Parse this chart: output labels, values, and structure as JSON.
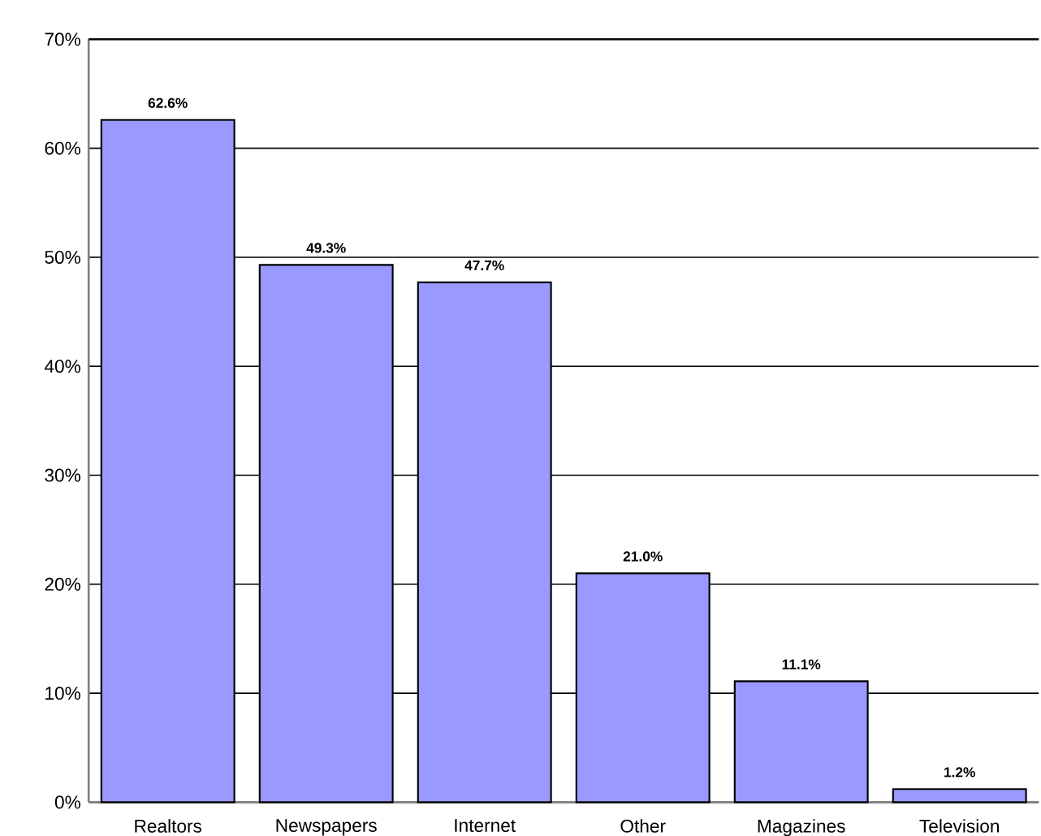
{
  "chart_data": {
    "type": "bar",
    "categories": [
      "Realtors",
      "Newspapers",
      "Internet",
      "Other",
      "Magazines",
      "Television"
    ],
    "values": [
      62.6,
      49.3,
      47.7,
      21.0,
      11.1,
      1.2
    ],
    "value_labels": [
      "62.6%",
      "49.3%",
      "47.7%",
      "21.0%",
      "11.1%",
      "1.2%"
    ],
    "color": "#9999ff",
    "ylim": [
      0,
      70
    ],
    "yticks": [
      {
        "value": 0,
        "label": "0%"
      },
      {
        "value": 10,
        "label": "10%"
      },
      {
        "value": 20,
        "label": "20%"
      },
      {
        "value": 30,
        "label": "30%"
      },
      {
        "value": 40,
        "label": "40%"
      },
      {
        "value": 50,
        "label": "50%"
      },
      {
        "value": 60,
        "label": "60%"
      },
      {
        "value": 70,
        "label": "70%"
      }
    ],
    "grid": "y"
  }
}
